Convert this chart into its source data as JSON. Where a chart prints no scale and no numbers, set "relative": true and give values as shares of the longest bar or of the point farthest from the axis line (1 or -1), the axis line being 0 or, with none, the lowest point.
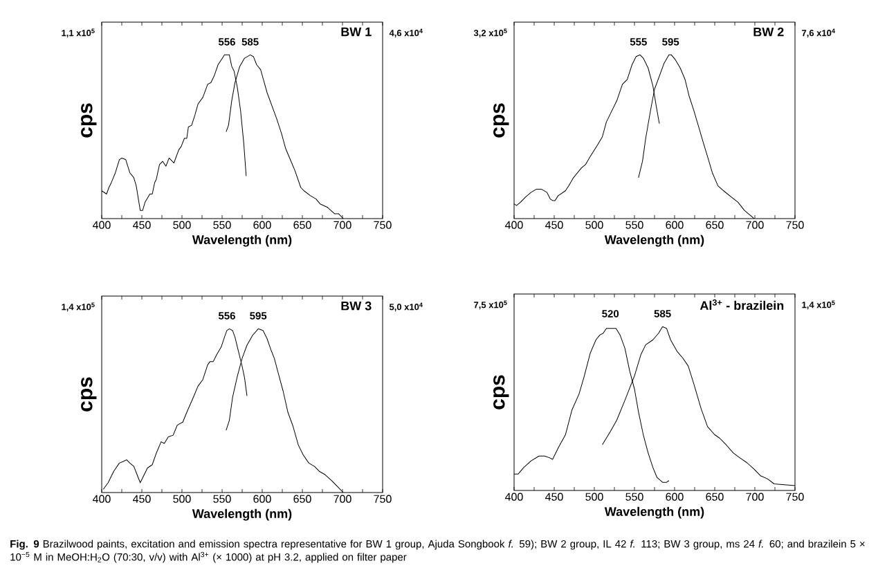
{
  "chart_data": [
    {
      "type": "line",
      "title": "BW 1",
      "xlabel": "Wavelength (nm)",
      "ylabel": "cps",
      "relative": true,
      "xlim": [
        400,
        750
      ],
      "xticks": [
        400,
        450,
        500,
        550,
        600,
        650,
        700,
        750
      ],
      "series": [
        {
          "color": "#000000",
          "x": [
            400,
            406,
            409,
            412,
            417,
            422,
            425,
            430,
            435,
            440,
            443,
            448,
            451,
            454,
            460,
            463,
            466,
            468,
            472,
            476,
            480,
            484,
            490,
            496,
            499,
            503,
            506,
            508,
            512,
            516,
            520,
            526,
            532,
            536,
            540,
            545,
            549,
            553,
            559,
            562,
            565,
            569,
            573,
            577,
            580
          ],
          "values": [
            0.17,
            0.15,
            0.19,
            0.22,
            0.28,
            0.36,
            0.37,
            0.36,
            0.28,
            0.25,
            0.2,
            0.05,
            0.05,
            0.1,
            0.15,
            0.15,
            0.22,
            0.24,
            0.33,
            0.35,
            0.32,
            0.37,
            0.34,
            0.42,
            0.44,
            0.49,
            0.49,
            0.56,
            0.57,
            0.63,
            0.7,
            0.74,
            0.82,
            0.83,
            0.87,
            0.94,
            0.97,
            1.0,
            1.0,
            0.93,
            0.9,
            0.8,
            0.66,
            0.46,
            0.26
          ]
        },
        {
          "color": "#000000",
          "x": [
            555,
            558,
            562,
            566,
            572,
            578,
            585,
            589,
            593,
            598,
            602,
            606,
            612,
            618,
            624,
            629,
            635,
            641,
            648,
            652,
            660,
            667,
            672,
            681,
            690,
            695,
            701
          ],
          "values": [
            0.53,
            0.57,
            0.72,
            0.83,
            0.93,
            0.98,
            1.0,
            0.99,
            0.94,
            0.91,
            0.84,
            0.77,
            0.69,
            0.61,
            0.52,
            0.43,
            0.36,
            0.29,
            0.19,
            0.17,
            0.14,
            0.12,
            0.09,
            0.07,
            0.03,
            0.03,
            0
          ]
        }
      ],
      "annotations": [
        "1,1 x10$^{5}$",
        "4,6 x10$^{4}$",
        "**Fig. 9**  Brazilwood paints, excitation and emission spectra representative for BW 1 group, Ajuda Songbook *f.* 59); BW 2 group, IL 42 *f.* 113; BW 3 group, ms 24 *f.* 60; and brazilein 5 × 10$^{−5}$ M in MeOH:H$_{2}$O (70:30, v/v) with Al$^{3+}$ (× 1000) at pH 3.2, applied on filter paper",
        {
          "text": "556",
          "x": 556,
          "y": 1.0
        },
        {
          "text": "585",
          "x": 585,
          "y": 1.0
        }
      ]
    },
    {
      "type": "line",
      "title": "BW 2",
      "xlabel": "Wavelength (nm)",
      "ylabel": "cps",
      "relative": true,
      "xlim": [
        400,
        750
      ],
      "xticks": [
        400,
        450,
        500,
        550,
        600,
        650,
        700,
        750
      ],
      "series": [
        {
          "color": "#000000",
          "x": [
            400,
            403,
            408,
            414,
            421,
            428,
            434,
            441,
            445,
            448,
            451,
            455,
            464,
            468,
            474,
            479,
            484,
            489,
            495,
            504,
            510,
            515,
            521,
            528,
            535,
            541,
            547,
            552,
            557,
            561,
            567,
            573,
            577,
            581
          ],
          "values": [
            0.09,
            0.08,
            0.1,
            0.13,
            0.16,
            0.18,
            0.18,
            0.16,
            0.12,
            0.11,
            0.11,
            0.14,
            0.17,
            0.2,
            0.25,
            0.28,
            0.31,
            0.33,
            0.38,
            0.45,
            0.5,
            0.59,
            0.65,
            0.72,
            0.82,
            0.85,
            0.94,
            0.99,
            1.0,
            0.98,
            0.92,
            0.81,
            0.69,
            0.58
          ]
        },
        {
          "color": "#000000",
          "x": [
            555,
            560,
            564,
            570,
            575,
            581,
            587,
            593,
            596,
            601,
            607,
            613,
            618,
            624,
            630,
            636,
            641,
            647,
            654,
            661,
            671,
            679,
            687,
            699
          ],
          "values": [
            0.25,
            0.35,
            0.49,
            0.66,
            0.79,
            0.87,
            0.95,
            1.0,
            1.0,
            0.97,
            0.92,
            0.85,
            0.75,
            0.66,
            0.56,
            0.46,
            0.38,
            0.28,
            0.2,
            0.17,
            0.13,
            0.1,
            0.05,
            0
          ]
        }
      ],
      "annotations": [
        "3,2 x10$^{5}$",
        "7,6 x10$^{4}$",
        {
          "text": "555",
          "x": 555,
          "y": 1.0
        },
        {
          "text": "595",
          "x": 595,
          "y": 1.0
        }
      ]
    },
    {
      "type": "line",
      "title": "BW 3",
      "xlabel": "Wavelength (nm)",
      "ylabel": "cps",
      "relative": true,
      "xlim": [
        400,
        750
      ],
      "xticks": [
        400,
        450,
        500,
        550,
        600,
        650,
        700,
        750
      ],
      "series": [
        {
          "color": "#000000",
          "x": [
            402,
            408,
            415,
            422,
            427,
            431,
            435,
            440,
            444,
            448,
            453,
            457,
            463,
            468,
            474,
            478,
            483,
            489,
            494,
            497,
            501,
            506,
            514,
            520,
            526,
            532,
            535,
            539,
            543,
            549,
            553,
            556,
            559,
            563,
            566,
            570,
            575,
            578,
            581
          ],
          "values": [
            0.02,
            0.06,
            0.13,
            0.18,
            0.19,
            0.2,
            0.18,
            0.16,
            0.11,
            0.06,
            0.11,
            0.15,
            0.17,
            0.24,
            0.31,
            0.3,
            0.34,
            0.35,
            0.41,
            0.42,
            0.43,
            0.49,
            0.58,
            0.65,
            0.69,
            0.78,
            0.8,
            0.8,
            0.84,
            0.89,
            0.95,
            0.99,
            1.0,
            0.99,
            0.95,
            0.87,
            0.77,
            0.7,
            0.59
          ]
        },
        {
          "color": "#000000",
          "x": [
            555,
            559,
            563,
            569,
            575,
            581,
            588,
            595,
            601,
            606,
            611,
            615,
            621,
            626,
            632,
            638,
            645,
            651,
            658,
            665,
            671,
            678,
            687,
            695,
            701
          ],
          "values": [
            0.38,
            0.44,
            0.58,
            0.71,
            0.82,
            0.9,
            0.96,
            1.0,
            0.99,
            0.94,
            0.87,
            0.82,
            0.71,
            0.62,
            0.49,
            0.41,
            0.29,
            0.23,
            0.18,
            0.16,
            0.13,
            0.11,
            0.07,
            0.03,
            0
          ]
        }
      ],
      "annotations": [
        "1,4 x10$^{5}$",
        "5,0 x10$^{4}$",
        {
          "text": "556",
          "x": 556,
          "y": 1.0
        },
        {
          "text": "595",
          "x": 595,
          "y": 1.0
        }
      ]
    },
    {
      "type": "line",
      "title": "Al$^{3+}$ - brazilein",
      "xlabel": "Wavelength (nm)",
      "ylabel": "cps",
      "relative": true,
      "xlim": [
        400,
        750
      ],
      "xticks": [
        400,
        450,
        500,
        550,
        600,
        650,
        700,
        750
      ],
      "series": [
        {
          "color": "#000000",
          "x": [
            400,
            405,
            412,
            421,
            431,
            438,
            444,
            448,
            455,
            464,
            472,
            481,
            487,
            495,
            502,
            507,
            511,
            515,
            521,
            527,
            532,
            538,
            544,
            550,
            555,
            561,
            567,
            573,
            578,
            585,
            590,
            593
          ],
          "values": [
            0.1,
            0.1,
            0.14,
            0.18,
            0.21,
            0.21,
            0.2,
            0.19,
            0.26,
            0.34,
            0.49,
            0.59,
            0.69,
            0.84,
            0.92,
            0.95,
            0.96,
            0.99,
            0.99,
            0.99,
            0.95,
            0.87,
            0.73,
            0.62,
            0.48,
            0.34,
            0.23,
            0.14,
            0.08,
            0.05,
            0.05,
            0.06
          ]
        },
        {
          "color": "#000000",
          "x": [
            510,
            520,
            528,
            538,
            550,
            558,
            564,
            573,
            580,
            585,
            590,
            595,
            603,
            610,
            617,
            624,
            633,
            641,
            650,
            656,
            664,
            673,
            681,
            690,
            699,
            707,
            716,
            724,
            750
          ],
          "values": [
            0.28,
            0.36,
            0.43,
            0.55,
            0.7,
            0.83,
            0.89,
            0.92,
            0.96,
            1.0,
            0.99,
            0.92,
            0.85,
            0.81,
            0.76,
            0.65,
            0.5,
            0.39,
            0.34,
            0.32,
            0.28,
            0.23,
            0.2,
            0.17,
            0.13,
            0.09,
            0.07,
            0.04,
            0.03
          ]
        }
      ],
      "annotations": [
        "7,5 x10$^{5}$",
        "1,4 x10$^{5}$",
        {
          "text": "520",
          "x": 520,
          "y": 1.0
        },
        {
          "text": "585",
          "x": 585,
          "y": 1.0
        }
      ]
    }
  ]
}
